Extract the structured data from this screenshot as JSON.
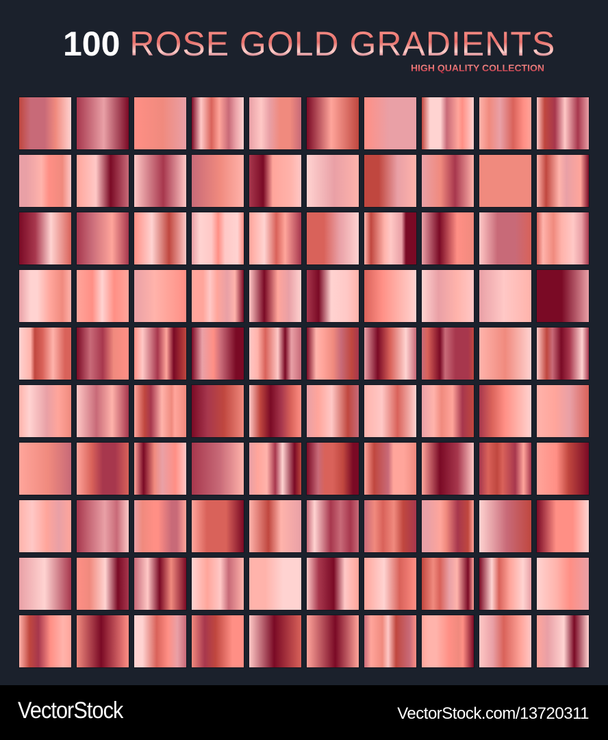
{
  "header": {
    "count": "100",
    "title": "ROSE GOLD GRADIENTS",
    "subtitle": "HIGH QUALITY COLLECTION"
  },
  "grid": {
    "rows": 10,
    "columns": 10,
    "palette": [
      "#ff8f85",
      "#ffb3ab",
      "#ffc8c6",
      "#ffd3d1",
      "#e9a0a6",
      "#c86a78",
      "#a7374d",
      "#7a0a25",
      "#c0473f",
      "#d9625a",
      "#f08a7e",
      "#ffa59b"
    ],
    "background": "#1b212c"
  },
  "footer": {
    "logo": "VectorStock",
    "url": "VectorStock.com/13720311"
  }
}
